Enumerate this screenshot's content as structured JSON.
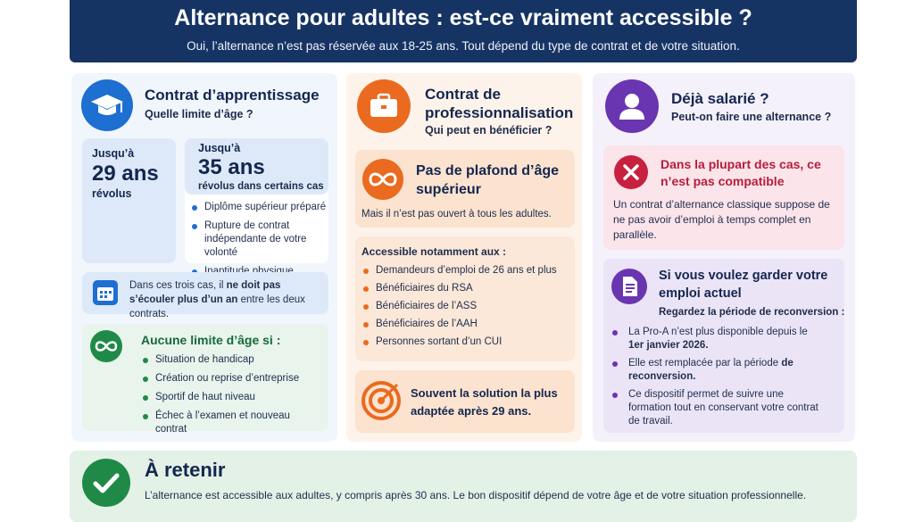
{
  "header": {
    "title": "Alternance pour adultes : est-ce vraiment accessible ?",
    "subtitle": "Oui, l’alternance n’est pas réservée aux 18-25 ans. Tout dépend du type de contrat et de votre situation."
  },
  "apprenticeship": {
    "title": "Contrat d’apprentissage",
    "subtitle": "Quelle limite d’âge ?",
    "standard": {
      "prefix": "Jusqu’à",
      "age": "29 ans",
      "suffix": "révolus"
    },
    "extended": {
      "prefix": "Jusqu’à",
      "age": "35 ans",
      "suffix": "révolus dans certains cas",
      "items": [
        "Diplôme supérieur préparé",
        "Rupture de contrat indépendante de votre volonté",
        "Inaptitude physique temporaire"
      ]
    },
    "note": [
      "Dans ces trois cas, il ",
      "ne doit pas s’écouler plus d’un an",
      " entre les deux contrats."
    ],
    "no_limit": {
      "title": "Aucune limite d’âge si :",
      "items": [
        "Situation de handicap",
        "Création ou reprise d’entreprise",
        "Sportif de haut niveau",
        "Échec à l’examen et nouveau contrat"
      ]
    }
  },
  "professionalisation": {
    "title": "Contrat de professionnalisation",
    "subtitle": "Qui peut en bénéficier ?",
    "no_cap": {
      "title": "Pas de plafond d’âge supérieur",
      "text": "Mais il n’est pas ouvert à tous les adultes."
    },
    "accessible": {
      "title": "Accessible notamment aux :",
      "items": [
        "Demandeurs d’emploi de 26 ans et plus",
        "Bénéficiaires du RSA",
        "Bénéficiaires de l’ASS",
        "Bénéficiaires de l’AAH",
        "Personnes sortant d’un CUI"
      ]
    },
    "tip": "Souvent la solution la plus adaptée après 29 ans."
  },
  "employee": {
    "title": "Déjà salarié ?",
    "subtitle": "Peut-on faire une alternance ?",
    "warning": {
      "title": "Dans la plupart des cas, ce n’est pas compatible",
      "text": "Un contrat d’alternance classique suppose de ne pas avoir d’emploi à temps complet en parallèle."
    },
    "keep_job": {
      "title": "Si vous voulez garder votre emploi actuel",
      "subtitle": "Regardez la période de reconversion :",
      "items": [
        [
          "La Pro-A n’est plus disponible depuis le ",
          "1er janvier 2026."
        ],
        [
          "Elle est remplacée par la période ",
          "de reconversion."
        ],
        [
          "Ce dispositif permet de suivre une formation tout en conservant votre contrat de travail."
        ]
      ]
    }
  },
  "footer": {
    "title": "À retenir",
    "text": "L’alternance est accessible aux adultes, y compris après 30 ans. Le bon dispositif dépend de votre âge et de votre situation professionnelle."
  }
}
